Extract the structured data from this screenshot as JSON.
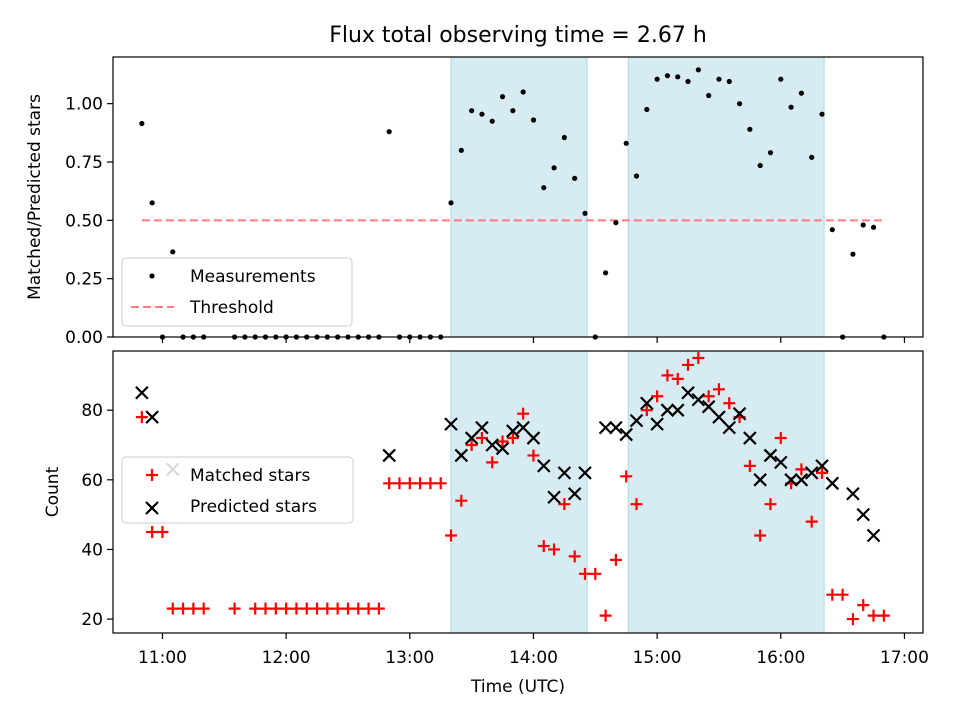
{
  "title": "Flux total observing time = 2.67 h",
  "colors": {
    "shade": "#add8e6",
    "measurements": "#000000",
    "threshold": "#ff7b7b",
    "matched": "#ff0000",
    "predicted": "#000000"
  },
  "chart_data": [
    {
      "type": "scatter",
      "ylabel": "Matched/Predicted stars",
      "xlim": [
        "10:36",
        "17:09"
      ],
      "ylim": [
        0,
        1.2
      ],
      "x_ticks": [
        "11:00",
        "12:00",
        "13:00",
        "14:00",
        "15:00",
        "16:00",
        "17:00"
      ],
      "y_ticks": [
        "0.00",
        "0.25",
        "0.50",
        "0.75",
        "1.00"
      ],
      "legend_position": "lower-left",
      "shaded_intervals": [
        [
          "13:20",
          "14:26"
        ],
        [
          "14:46",
          "16:21"
        ]
      ],
      "threshold": {
        "name": "Threshold",
        "value": 0.5,
        "x_range": [
          "10:50",
          "16:50"
        ]
      },
      "series": [
        {
          "name": "Measurements",
          "marker": "dot",
          "points": [
            [
              "10:50",
              0.915
            ],
            [
              "10:55",
              0.575
            ],
            [
              "11:00",
              0.0
            ],
            [
              "11:05",
              0.365
            ],
            [
              "11:10",
              0.0
            ],
            [
              "11:15",
              0.0
            ],
            [
              "11:20",
              0.0
            ],
            [
              "11:35",
              0.0
            ],
            [
              "11:40",
              0.0
            ],
            [
              "11:45",
              0.0
            ],
            [
              "11:50",
              0.0
            ],
            [
              "11:55",
              0.0
            ],
            [
              "12:00",
              0.0
            ],
            [
              "12:05",
              0.0
            ],
            [
              "12:10",
              0.0
            ],
            [
              "12:15",
              0.0
            ],
            [
              "12:20",
              0.0
            ],
            [
              "12:25",
              0.0
            ],
            [
              "12:30",
              0.0
            ],
            [
              "12:35",
              0.0
            ],
            [
              "12:40",
              0.0
            ],
            [
              "12:45",
              0.0
            ],
            [
              "12:50",
              0.88
            ],
            [
              "12:55",
              0.0
            ],
            [
              "13:00",
              0.0
            ],
            [
              "13:05",
              0.0
            ],
            [
              "13:10",
              0.0
            ],
            [
              "13:15",
              0.0
            ],
            [
              "13:20",
              0.575
            ],
            [
              "13:25",
              0.8
            ],
            [
              "13:30",
              0.97
            ],
            [
              "13:35",
              0.955
            ],
            [
              "13:40",
              0.925
            ],
            [
              "13:45",
              1.03
            ],
            [
              "13:50",
              0.97
            ],
            [
              "13:55",
              1.05
            ],
            [
              "14:00",
              0.93
            ],
            [
              "14:05",
              0.64
            ],
            [
              "14:10",
              0.725
            ],
            [
              "14:15",
              0.855
            ],
            [
              "14:20",
              0.68
            ],
            [
              "14:25",
              0.53
            ],
            [
              "14:30",
              0.0
            ],
            [
              "14:35",
              0.275
            ],
            [
              "14:40",
              0.49
            ],
            [
              "14:45",
              0.83
            ],
            [
              "14:50",
              0.69
            ],
            [
              "14:55",
              0.975
            ],
            [
              "15:00",
              1.105
            ],
            [
              "15:05",
              1.12
            ],
            [
              "15:10",
              1.115
            ],
            [
              "15:15",
              1.095
            ],
            [
              "15:20",
              1.145
            ],
            [
              "15:25",
              1.035
            ],
            [
              "15:30",
              1.105
            ],
            [
              "15:35",
              1.095
            ],
            [
              "15:40",
              1.0
            ],
            [
              "15:45",
              0.89
            ],
            [
              "15:50",
              0.735
            ],
            [
              "15:55",
              0.79
            ],
            [
              "16:00",
              1.105
            ],
            [
              "16:05",
              0.985
            ],
            [
              "16:10",
              1.045
            ],
            [
              "16:15",
              0.77
            ],
            [
              "16:20",
              0.955
            ],
            [
              "16:25",
              0.46
            ],
            [
              "16:30",
              0.0
            ],
            [
              "16:35",
              0.355
            ],
            [
              "16:40",
              0.48
            ],
            [
              "16:45",
              0.47
            ],
            [
              "16:50",
              0.0
            ]
          ]
        }
      ]
    },
    {
      "type": "scatter",
      "xlabel": "Time (UTC)",
      "ylabel": "Count",
      "xlim": [
        "10:36",
        "17:09"
      ],
      "ylim": [
        16,
        97
      ],
      "x_ticks": [
        "11:00",
        "12:00",
        "13:00",
        "14:00",
        "15:00",
        "16:00",
        "17:00"
      ],
      "y_ticks": [
        "20",
        "40",
        "60",
        "80"
      ],
      "legend_position": "center-left",
      "shaded_intervals": [
        [
          "13:20",
          "14:26"
        ],
        [
          "14:46",
          "16:21"
        ]
      ],
      "series": [
        {
          "name": "Matched stars",
          "marker": "plus",
          "points": [
            [
              "10:50",
              78
            ],
            [
              "10:55",
              45
            ],
            [
              "11:00",
              45
            ],
            [
              "11:05",
              23
            ],
            [
              "11:10",
              23
            ],
            [
              "11:15",
              23
            ],
            [
              "11:20",
              23
            ],
            [
              "11:35",
              23
            ],
            [
              "11:45",
              23
            ],
            [
              "11:50",
              23
            ],
            [
              "11:55",
              23
            ],
            [
              "12:00",
              23
            ],
            [
              "12:05",
              23
            ],
            [
              "12:10",
              23
            ],
            [
              "12:15",
              23
            ],
            [
              "12:20",
              23
            ],
            [
              "12:25",
              23
            ],
            [
              "12:30",
              23
            ],
            [
              "12:35",
              23
            ],
            [
              "12:40",
              23
            ],
            [
              "12:45",
              23
            ],
            [
              "12:50",
              59
            ],
            [
              "12:55",
              59
            ],
            [
              "13:00",
              59
            ],
            [
              "13:05",
              59
            ],
            [
              "13:10",
              59
            ],
            [
              "13:15",
              59
            ],
            [
              "13:20",
              44
            ],
            [
              "13:25",
              54
            ],
            [
              "13:30",
              70
            ],
            [
              "13:35",
              72
            ],
            [
              "13:40",
              65
            ],
            [
              "13:45",
              71
            ],
            [
              "13:50",
              72
            ],
            [
              "13:55",
              79
            ],
            [
              "14:00",
              67
            ],
            [
              "14:05",
              41
            ],
            [
              "14:10",
              40
            ],
            [
              "14:15",
              53
            ],
            [
              "14:20",
              38
            ],
            [
              "14:25",
              33
            ],
            [
              "14:30",
              33
            ],
            [
              "14:35",
              21
            ],
            [
              "14:40",
              37
            ],
            [
              "14:45",
              61
            ],
            [
              "14:50",
              53
            ],
            [
              "14:55",
              80
            ],
            [
              "15:00",
              84
            ],
            [
              "15:05",
              90
            ],
            [
              "15:10",
              89
            ],
            [
              "15:15",
              93
            ],
            [
              "15:20",
              95
            ],
            [
              "15:25",
              84
            ],
            [
              "15:30",
              86
            ],
            [
              "15:35",
              82
            ],
            [
              "15:40",
              78
            ],
            [
              "15:45",
              64
            ],
            [
              "15:50",
              44
            ],
            [
              "15:55",
              53
            ],
            [
              "16:00",
              72
            ],
            [
              "16:05",
              59
            ],
            [
              "16:10",
              63
            ],
            [
              "16:15",
              48
            ],
            [
              "16:20",
              62
            ],
            [
              "16:25",
              27
            ],
            [
              "16:30",
              27
            ],
            [
              "16:35",
              20
            ],
            [
              "16:40",
              24
            ],
            [
              "16:45",
              21
            ],
            [
              "16:50",
              21
            ]
          ]
        },
        {
          "name": "Predicted stars",
          "marker": "x",
          "points": [
            [
              "10:50",
              85
            ],
            [
              "10:55",
              78
            ],
            [
              "11:05",
              63
            ],
            [
              "12:50",
              67
            ],
            [
              "13:20",
              76
            ],
            [
              "13:25",
              67
            ],
            [
              "13:30",
              72
            ],
            [
              "13:35",
              75
            ],
            [
              "13:40",
              70
            ],
            [
              "13:45",
              69
            ],
            [
              "13:50",
              74
            ],
            [
              "13:55",
              75
            ],
            [
              "14:00",
              72
            ],
            [
              "14:05",
              64
            ],
            [
              "14:10",
              55
            ],
            [
              "14:15",
              62
            ],
            [
              "14:20",
              56
            ],
            [
              "14:25",
              62
            ],
            [
              "14:35",
              75
            ],
            [
              "14:40",
              75
            ],
            [
              "14:45",
              73
            ],
            [
              "14:50",
              77
            ],
            [
              "14:55",
              82
            ],
            [
              "15:00",
              76
            ],
            [
              "15:05",
              80
            ],
            [
              "15:10",
              80
            ],
            [
              "15:15",
              85
            ],
            [
              "15:20",
              83
            ],
            [
              "15:25",
              81
            ],
            [
              "15:30",
              78
            ],
            [
              "15:35",
              75
            ],
            [
              "15:40",
              79
            ],
            [
              "15:45",
              72
            ],
            [
              "15:50",
              60
            ],
            [
              "15:55",
              67
            ],
            [
              "16:00",
              65
            ],
            [
              "16:05",
              60
            ],
            [
              "16:10",
              60
            ],
            [
              "16:15",
              62
            ],
            [
              "16:20",
              64
            ],
            [
              "16:25",
              59
            ],
            [
              "16:35",
              56
            ],
            [
              "16:40",
              50
            ],
            [
              "16:45",
              44
            ]
          ]
        }
      ]
    }
  ]
}
